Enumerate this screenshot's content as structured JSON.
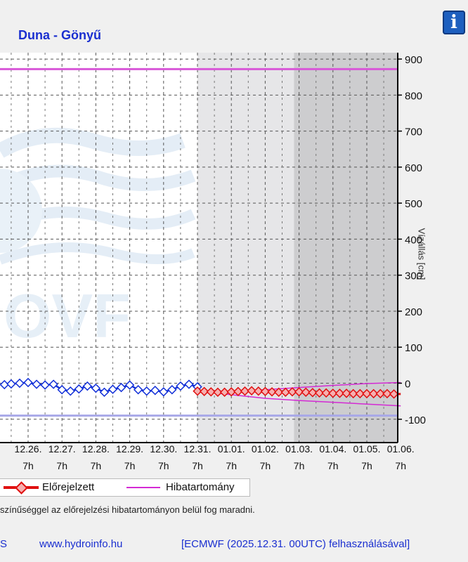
{
  "header": {
    "title": "Duna - Gönyű",
    "info_icon": "info-icon"
  },
  "legend": {
    "forecast_label": "Előrejelzett",
    "error_label": "Hibatartomány"
  },
  "note": "színűséggel az előrejelzési hibatartományon belül fog maradni.",
  "footer": {
    "left_fragment": "S",
    "site": "www.hydroinfo.hu",
    "ecmwf": "[ECMWF (2025.12.31. 00UTC) felhasználásával]"
  },
  "colors": {
    "observed": "#1230d8",
    "forecast": "#e01010",
    "error_band": "#d42ad4",
    "upper_limit": "#d858d8",
    "lower_limit": "#a8a8e8",
    "shade_light": "#e6e6e8",
    "shade_dark": "#cdcdcf",
    "title": "#1a2fd0"
  },
  "watermark": {
    "text": "OVF"
  },
  "chart_data": {
    "type": "line",
    "ylabel": "Vízállás [cm]",
    "ylim": [
      -130,
      925
    ],
    "yticks": [
      -100,
      0,
      100,
      200,
      300,
      400,
      500,
      600,
      700,
      800,
      900
    ],
    "x_dates": [
      "12.25.",
      "12.26.",
      "12.27.",
      "12.28.",
      "12.29.",
      "12.30.",
      "12.31.",
      "01.01.",
      "01.02.",
      "01.03.",
      "01.04.",
      "01.05.",
      "01.06."
    ],
    "x_date_labels": [
      "5.",
      "12.26.",
      "12.27.",
      "12.28.",
      "12.29.",
      "12.30.",
      "12.31.",
      "01.01.",
      "01.02.",
      "01.03.",
      "01.04.",
      "01.05.",
      "01.06."
    ],
    "x_hour_label": "7h",
    "xlim_days": [
      -5.7,
      6.1
    ],
    "grid": true,
    "reference_lines": [
      {
        "name": "upper",
        "value": 872
      },
      {
        "name": "lower",
        "value": -90
      }
    ],
    "shaded_regions": [
      {
        "from": 0,
        "to": 2.85,
        "shade": "light"
      },
      {
        "from": 2.85,
        "to": 6.1,
        "shade": "dark"
      }
    ],
    "series": [
      {
        "name": "Mért",
        "x": [
          -5.7,
          -5.5,
          -5.25,
          -5.0,
          -4.75,
          -4.5,
          -4.25,
          -4.0,
          -3.75,
          -3.5,
          -3.25,
          -3.0,
          -2.75,
          -2.5,
          -2.25,
          -2.0,
          -1.75,
          -1.5,
          -1.25,
          -1.0,
          -0.75,
          -0.5,
          -0.25,
          0.0
        ],
        "values": [
          -4,
          -2,
          0,
          2,
          -3,
          -5,
          -3,
          -18,
          -22,
          -16,
          -8,
          -14,
          -25,
          -17,
          -12,
          -5,
          -18,
          -22,
          -20,
          -24,
          -18,
          -8,
          -3,
          -10
        ]
      },
      {
        "name": "Előrejelzett",
        "x": [
          0.0,
          0.2,
          0.4,
          0.6,
          0.8,
          1.0,
          1.2,
          1.4,
          1.6,
          1.8,
          2.0,
          2.2,
          2.4,
          2.6,
          2.8,
          3.0,
          3.2,
          3.4,
          3.6,
          3.8,
          4.0,
          4.2,
          4.4,
          4.6,
          4.8,
          5.0,
          5.2,
          5.4,
          5.6,
          5.8,
          6.0
        ],
        "values": [
          -22,
          -23,
          -24,
          -25,
          -25,
          -24,
          -23,
          -22,
          -21,
          -22,
          -23,
          -24,
          -25,
          -25,
          -24,
          -24,
          -25,
          -26,
          -27,
          -27,
          -28,
          -28,
          -28,
          -29,
          -29,
          -29,
          -29,
          -29,
          -29,
          -30,
          -30
        ]
      }
    ],
    "error_band": {
      "name": "Hibatartomány",
      "x": [
        0,
        1,
        2,
        3,
        4,
        5,
        6
      ],
      "upper": [
        -22,
        -22,
        -18,
        -12,
        -6,
        -1,
        2
      ],
      "lower": [
        -22,
        -32,
        -42,
        -48,
        -53,
        -58,
        -63
      ]
    }
  }
}
